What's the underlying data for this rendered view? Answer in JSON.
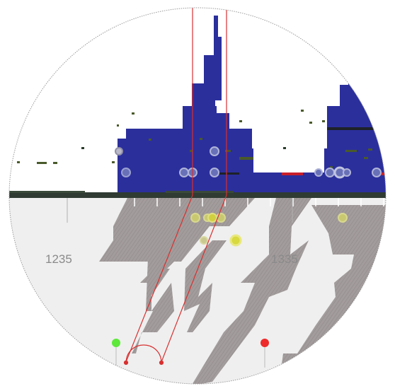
{
  "labels": {
    "left_value": "1235",
    "right_value": "1335"
  },
  "colors": {
    "histogram": "#2b2f9c",
    "track": "#2f3b33",
    "band": "#9a9393",
    "lower_background": "#efefef",
    "selection_line": "#d83030",
    "marker_green": "#5de83a",
    "marker_red": "#ee2a2a",
    "highlight_red": "#c8202a",
    "ring": "#a8a8c8",
    "dot_yellow": "#c8d040",
    "border": "#9a9a9a"
  },
  "markers": [
    {
      "name": "green-marker",
      "color": "green"
    },
    {
      "name": "red-marker",
      "color": "red"
    }
  ]
}
